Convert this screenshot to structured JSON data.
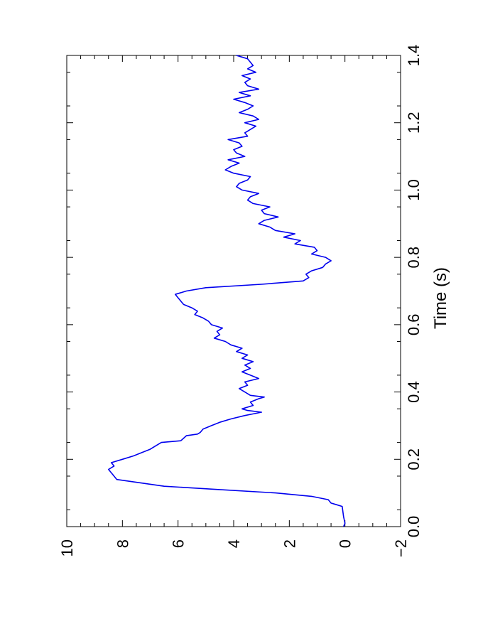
{
  "chart_data": {
    "type": "line",
    "title": "",
    "xlabel": "Time (s)",
    "ylabel": "",
    "xlim": [
      0.0,
      1.4
    ],
    "ylim": [
      -2,
      10
    ],
    "x_ticks": [
      0.0,
      0.2,
      0.4,
      0.6,
      0.8,
      1.0,
      1.2,
      1.4
    ],
    "x_tick_labels": [
      "0.0",
      "0.2",
      "0.4",
      "0.6",
      "0.8",
      "1.0",
      "1.2",
      "1.4"
    ],
    "y_ticks": [
      -2,
      0,
      2,
      4,
      6,
      8,
      10
    ],
    "y_tick_labels": [
      "−2",
      "0",
      "2",
      "4",
      "6",
      "8",
      "10"
    ],
    "orientation": "rotated 90 degrees counter-clockwise",
    "grid": false,
    "series": [
      {
        "color": "#0000ee",
        "x": [
          0.0,
          0.01,
          0.03,
          0.06,
          0.065,
          0.07,
          0.08,
          0.09,
          0.1,
          0.11,
          0.12,
          0.14,
          0.15,
          0.16,
          0.17,
          0.18,
          0.19,
          0.2,
          0.21,
          0.22,
          0.23,
          0.24,
          0.25,
          0.255,
          0.27,
          0.275,
          0.28,
          0.29,
          0.3,
          0.31,
          0.32,
          0.33,
          0.335,
          0.34,
          0.345,
          0.35,
          0.36,
          0.37,
          0.38,
          0.385,
          0.39,
          0.4,
          0.41,
          0.42,
          0.43,
          0.44,
          0.45,
          0.46,
          0.47,
          0.48,
          0.49,
          0.5,
          0.51,
          0.52,
          0.53,
          0.54,
          0.55,
          0.56,
          0.57,
          0.58,
          0.59,
          0.6,
          0.61,
          0.62,
          0.63,
          0.64,
          0.65,
          0.66,
          0.67,
          0.68,
          0.69,
          0.7,
          0.71,
          0.72,
          0.73,
          0.74,
          0.75,
          0.76,
          0.77,
          0.78,
          0.79,
          0.8,
          0.81,
          0.82,
          0.83,
          0.84,
          0.85,
          0.86,
          0.87,
          0.88,
          0.89,
          0.9,
          0.91,
          0.92,
          0.93,
          0.94,
          0.95,
          0.96,
          0.97,
          0.98,
          0.99,
          1.0,
          1.01,
          1.02,
          1.03,
          1.04,
          1.05,
          1.06,
          1.07,
          1.08,
          1.09,
          1.1,
          1.11,
          1.12,
          1.13,
          1.14,
          1.15,
          1.16,
          1.17,
          1.18,
          1.19,
          1.2,
          1.21,
          1.22,
          1.23,
          1.24,
          1.25,
          1.26,
          1.27,
          1.28,
          1.29,
          1.3,
          1.31,
          1.32,
          1.33,
          1.34,
          1.35,
          1.36,
          1.37,
          1.38,
          1.39,
          1.4
        ],
        "y": [
          0.05,
          0.0,
          0.05,
          0.1,
          0.3,
          0.5,
          0.6,
          1.2,
          2.5,
          4.5,
          6.5,
          8.2,
          8.3,
          8.4,
          8.5,
          8.3,
          8.4,
          8.0,
          7.6,
          7.3,
          7.0,
          6.8,
          6.6,
          5.9,
          5.7,
          5.3,
          5.2,
          5.1,
          4.8,
          4.5,
          4.1,
          3.6,
          3.3,
          3.0,
          3.5,
          3.7,
          3.3,
          3.4,
          3.1,
          2.9,
          3.4,
          3.6,
          3.8,
          3.5,
          3.6,
          3.1,
          3.4,
          3.7,
          3.4,
          3.6,
          3.3,
          3.7,
          3.5,
          3.9,
          3.7,
          4.1,
          4.3,
          4.7,
          4.5,
          4.6,
          4.4,
          4.8,
          4.9,
          5.1,
          5.4,
          5.3,
          5.5,
          5.8,
          5.9,
          6.0,
          6.1,
          5.7,
          5.0,
          3.0,
          1.5,
          1.3,
          1.4,
          1.2,
          0.8,
          0.7,
          0.5,
          0.7,
          1.2,
          1.0,
          1.1,
          1.8,
          1.6,
          2.2,
          1.8,
          2.5,
          2.7,
          3.1,
          2.9,
          2.4,
          2.9,
          3.0,
          2.7,
          3.3,
          3.5,
          3.4,
          3.1,
          3.7,
          3.9,
          3.8,
          3.5,
          3.4,
          4.0,
          4.3,
          4.1,
          3.8,
          4.2,
          3.6,
          3.9,
          4.0,
          3.7,
          3.8,
          4.2,
          3.5,
          3.6,
          3.4,
          3.2,
          3.6,
          3.1,
          3.3,
          3.8,
          3.5,
          3.3,
          3.6,
          4.0,
          3.4,
          3.8,
          3.1,
          3.5,
          3.6,
          3.4,
          3.7,
          3.2,
          3.5,
          3.3,
          3.4,
          3.5,
          3.9
        ]
      }
    ]
  }
}
